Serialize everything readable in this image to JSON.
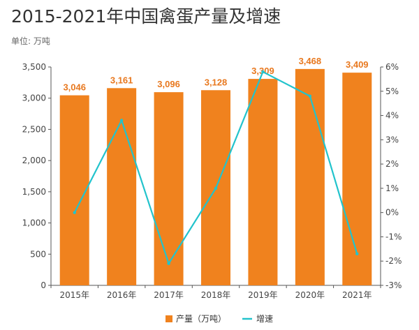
{
  "chart_data": {
    "type": "bar",
    "title": "2015-2021年中国禽蛋产量及增速",
    "subtitle": "单位: 万吨",
    "categories": [
      "2015年",
      "2016年",
      "2017年",
      "2018年",
      "2019年",
      "2020年",
      "2021年"
    ],
    "series": [
      {
        "name": "产量（万吨）",
        "type": "bar",
        "axis": "left",
        "color": "#f0821e",
        "values": [
          3046,
          3161,
          3096,
          3128,
          3309,
          3468,
          3409
        ],
        "labels": [
          "3,046",
          "3,161",
          "3,096",
          "3,128",
          "3,309",
          "3,468",
          "3,409"
        ]
      },
      {
        "name": "增速",
        "type": "line",
        "axis": "right",
        "color": "#22c3cc",
        "values": [
          0.0,
          3.8,
          -2.1,
          1.0,
          5.8,
          4.8,
          -1.7
        ]
      }
    ],
    "y_left": {
      "range": [
        0,
        3500
      ],
      "ticks": [
        "0",
        "500",
        "1,000",
        "1,500",
        "2,000",
        "2,500",
        "3,000",
        "3,500"
      ]
    },
    "y_right": {
      "range": [
        -3,
        6
      ],
      "ticks": [
        "-3%",
        "-2%",
        "-1%",
        "0%",
        "1%",
        "2%",
        "3%",
        "4%",
        "5%",
        "6%"
      ]
    },
    "grid": false,
    "legend": "bottom-center"
  }
}
